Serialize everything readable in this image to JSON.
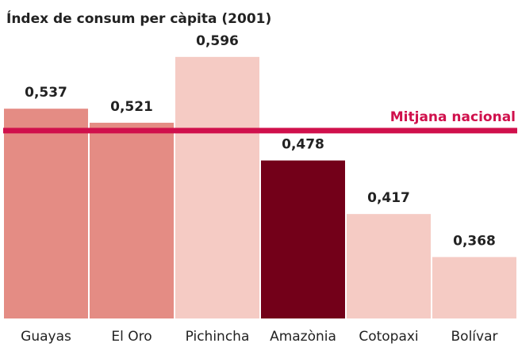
{
  "chart_data": {
    "type": "bar",
    "title": "Índex de consum per càpita (2001)",
    "categories": [
      "Guayas",
      "El Oro",
      "Pichincha",
      "Amazònia",
      "Cotopaxi",
      "Bolívar"
    ],
    "values": [
      0.537,
      0.521,
      0.596,
      0.478,
      0.417,
      0.368
    ],
    "value_labels": [
      "0,537",
      "0,521",
      "0,596",
      "0,478",
      "0,417",
      "0,368"
    ],
    "colors": [
      "#e48c84",
      "#e48c84",
      "#f5cbc4",
      "#730019",
      "#f5cbc4",
      "#f5cbc4"
    ],
    "ylim": [
      0.298,
      0.65
    ],
    "reference_line": {
      "label": "Mitjana nacional",
      "value": 0.512,
      "color": "#d0104c"
    }
  }
}
